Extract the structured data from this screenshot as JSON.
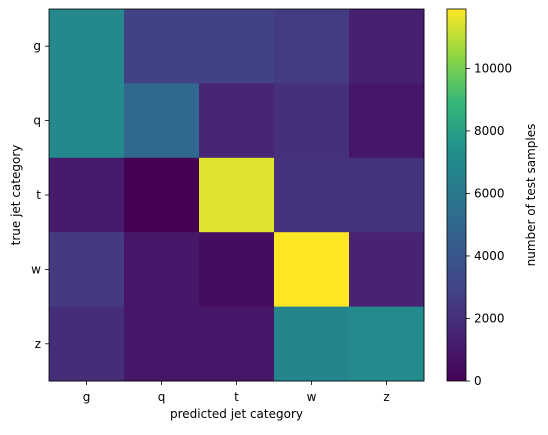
{
  "chart_data": {
    "type": "heatmap",
    "xlabel": "predicted jet category",
    "ylabel": "true jet category",
    "x_categories": [
      "g",
      "q",
      "t",
      "w",
      "z"
    ],
    "y_categories": [
      "g",
      "q",
      "t",
      "w",
      "z"
    ],
    "values": [
      [
        6900,
        2900,
        2900,
        2600,
        1300
      ],
      [
        6900,
        5000,
        1600,
        2000,
        900
      ],
      [
        1100,
        0,
        11500,
        2200,
        2200
      ],
      [
        2500,
        900,
        500,
        11900,
        1400
      ],
      [
        1900,
        900,
        900,
        6700,
        7000
      ]
    ],
    "colorbar": {
      "label": "number of test samples",
      "range": [
        0,
        11900
      ],
      "ticks": [
        0,
        2000,
        4000,
        6000,
        8000,
        10000
      ],
      "colormap": "viridis"
    }
  }
}
